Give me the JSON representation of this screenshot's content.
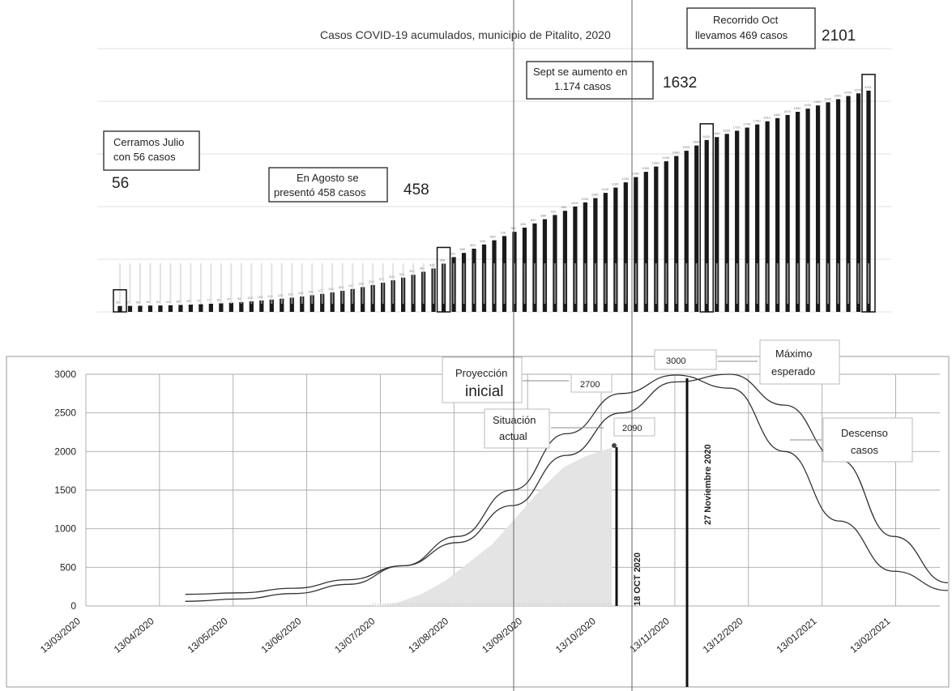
{
  "chart_data": [
    {
      "type": "bar",
      "title": "Casos COVID-19 acumulados, municipio de Pitalito, 2020",
      "values": [
        56,
        57,
        58,
        60,
        61,
        63,
        66,
        69,
        73,
        77,
        82,
        87,
        93,
        100,
        108,
        116,
        125,
        135,
        146,
        158,
        171,
        185,
        200,
        217,
        235,
        255,
        277,
        300,
        325,
        352,
        381,
        412,
        458,
        520,
        560,
        600,
        640,
        680,
        720,
        760,
        800,
        840,
        880,
        920,
        960,
        1000,
        1040,
        1080,
        1130,
        1180,
        1230,
        1280,
        1330,
        1380,
        1430,
        1480,
        1530,
        1580,
        1632,
        1660,
        1690,
        1720,
        1750,
        1780,
        1810,
        1840,
        1870,
        1900,
        1930,
        1960,
        1990,
        2020,
        2050,
        2075,
        2101
      ],
      "highlighted": [
        {
          "label": "56",
          "index": 0
        },
        {
          "label": "458",
          "index": 32
        },
        {
          "label": "1632",
          "index": 58
        },
        {
          "label": "2101",
          "index": 74
        }
      ],
      "callouts": [
        {
          "line1": "Cerramos Julio",
          "line2": "con 56 casos"
        },
        {
          "line1": "En Agosto se",
          "line2": "presentó 458 casos"
        },
        {
          "line1": "Sept se aumento en",
          "line2": "1.174 casos"
        },
        {
          "line1": "Recorrido Oct",
          "line2": "llevamos 469 casos"
        }
      ],
      "grid": true
    },
    {
      "type": "line",
      "x_ticks": [
        "13/03/2020",
        "13/04/2020",
        "13/05/2020",
        "13/06/2020",
        "13/07/2020",
        "13/08/2020",
        "13/09/2020",
        "13/10/2020",
        "13/11/2020",
        "13/12/2020",
        "13/01/2021",
        "13/02/2021"
      ],
      "y_ticks": [
        "0",
        "500",
        "1000",
        "1500",
        "2000",
        "2500",
        "3000"
      ],
      "ylim": [
        0,
        3000
      ],
      "series": [
        {
          "values": [
            60,
            90,
            160,
            280,
            520,
            900,
            1500,
            2230,
            2750,
            2990,
            2820,
            2000,
            1100,
            450,
            200
          ]
        },
        {
          "values": [
            150,
            170,
            230,
            340,
            520,
            820,
            1300,
            1950,
            2500,
            2900,
            3000,
            2600,
            1900,
            900,
            300
          ]
        }
      ],
      "area": {
        "values": [
          0,
          40,
          150,
          320,
          560,
          800,
          1150,
          1500,
          1800,
          1950,
          2050
        ]
      },
      "markers": [
        {
          "label": "18 OCT 2020",
          "value": 2090
        },
        {
          "label": "27 Noviembre 2020",
          "value": 3000
        }
      ],
      "annotations": [
        {
          "line1": "Proyección",
          "line2": "inicial",
          "value": "2700"
        },
        {
          "line1": "Situación",
          "line2": "actual",
          "value": "2090"
        },
        {
          "line1": "Máximo",
          "line2": "esperado",
          "value": "3000"
        },
        {
          "line1": "Descenso",
          "line2": "casos"
        }
      ],
      "grid": true
    }
  ]
}
